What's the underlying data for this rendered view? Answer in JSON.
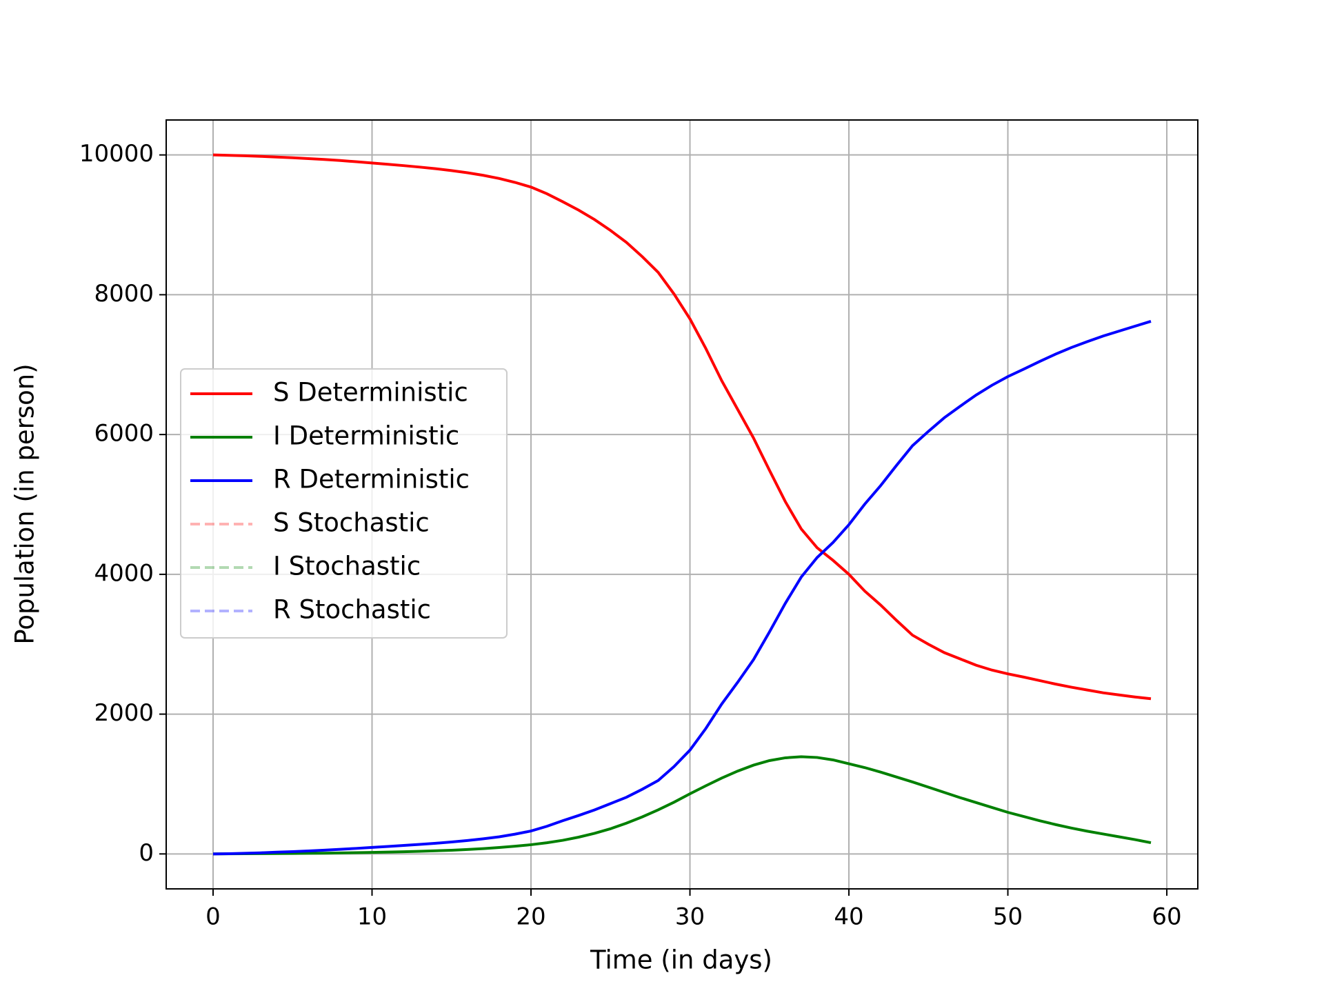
{
  "chart_data": {
    "type": "line",
    "xlabel": "Time (in days)",
    "ylabel": "Population (in person)",
    "x": [
      0,
      1,
      2,
      3,
      4,
      5,
      6,
      7,
      8,
      9,
      10,
      11,
      12,
      13,
      14,
      15,
      16,
      17,
      18,
      19,
      20,
      21,
      22,
      23,
      24,
      25,
      26,
      27,
      28,
      29,
      30,
      31,
      32,
      33,
      34,
      35,
      36,
      37,
      38,
      39,
      40,
      41,
      42,
      43,
      44,
      45,
      46,
      47,
      48,
      49,
      50,
      51,
      52,
      53,
      54,
      55,
      56,
      57,
      58,
      59
    ],
    "series": [
      {
        "name": "S Deterministic",
        "color": "#ff0000",
        "dash": "solid",
        "opacity": 1,
        "values": [
          10000,
          9995,
          9988,
          9980,
          9970,
          9960,
          9948,
          9935,
          9920,
          9903,
          9885,
          9866,
          9847,
          9826,
          9803,
          9776,
          9745,
          9708,
          9663,
          9607,
          9540,
          9445,
          9330,
          9210,
          9075,
          8920,
          8750,
          8545,
          8320,
          8010,
          7655,
          7230,
          6770,
          6360,
          5950,
          5490,
          5040,
          4650,
          4380,
          4200,
          4000,
          3760,
          3560,
          3340,
          3130,
          3000,
          2880,
          2790,
          2700,
          2630,
          2576,
          2530,
          2480,
          2430,
          2385,
          2345,
          2305,
          2275,
          2245,
          2220
        ]
      },
      {
        "name": "I Deterministic",
        "color": "#008000",
        "dash": "solid",
        "opacity": 1,
        "values": [
          1,
          2,
          3,
          4,
          5,
          7,
          9,
          11,
          14,
          18,
          22,
          27,
          32,
          38,
          45,
          53,
          63,
          76,
          92,
          110,
          132,
          160,
          195,
          240,
          295,
          360,
          440,
          530,
          630,
          740,
          860,
          975,
          1085,
          1185,
          1270,
          1335,
          1375,
          1390,
          1380,
          1345,
          1290,
          1235,
          1170,
          1100,
          1030,
          955,
          880,
          805,
          735,
          665,
          595,
          535,
          475,
          420,
          370,
          325,
          285,
          245,
          205,
          160
        ]
      },
      {
        "name": "R Deterministic",
        "color": "#0000ff",
        "dash": "solid",
        "opacity": 1,
        "values": [
          0,
          3,
          9,
          16,
          25,
          33,
          43,
          54,
          66,
          79,
          93,
          107,
          121,
          136,
          152,
          171,
          192,
          216,
          245,
          283,
          328,
          395,
          475,
          550,
          630,
          720,
          810,
          925,
          1050,
          1250,
          1485,
          1795,
          2145,
          2455,
          2780,
          3175,
          3585,
          3960,
          4240,
          4455,
          4710,
          5005,
          5270,
          5560,
          5840,
          6045,
          6240,
          6405,
          6565,
          6705,
          6829,
          6935,
          7045,
          7150,
          7245,
          7330,
          7410,
          7480,
          7550,
          7620
        ]
      },
      {
        "name": "S Stochastic",
        "color": "#ff0000",
        "dash": "dashed",
        "opacity": 0.3,
        "values": [
          null,
          null,
          null,
          null,
          null,
          null,
          null,
          null,
          null,
          null,
          null,
          null,
          null,
          null,
          null,
          null,
          null,
          null,
          null,
          null,
          null,
          null,
          null,
          null,
          null,
          null,
          null,
          null,
          null,
          null,
          null,
          null,
          null,
          null,
          null,
          null,
          null,
          null,
          null,
          null,
          null,
          null,
          null,
          null,
          null,
          null,
          null,
          null,
          null,
          null,
          null,
          null,
          null,
          null,
          null,
          null,
          null,
          null,
          null,
          null
        ]
      },
      {
        "name": "I Stochastic",
        "color": "#008000",
        "dash": "dashed",
        "opacity": 0.3,
        "values": [
          null,
          null,
          null,
          null,
          null,
          null,
          null,
          null,
          null,
          null,
          null,
          null,
          null,
          null,
          null,
          null,
          null,
          null,
          null,
          null,
          null,
          null,
          null,
          null,
          null,
          null,
          null,
          null,
          null,
          null,
          null,
          null,
          null,
          null,
          null,
          null,
          null,
          null,
          null,
          null,
          null,
          null,
          null,
          null,
          null,
          null,
          null,
          null,
          null,
          null,
          null,
          null,
          null,
          null,
          null,
          null,
          null,
          null,
          null,
          null
        ]
      },
      {
        "name": "R Stochastic",
        "color": "#0000ff",
        "dash": "dashed",
        "opacity": 0.3,
        "values": [
          null,
          null,
          null,
          null,
          null,
          null,
          null,
          null,
          null,
          null,
          null,
          null,
          null,
          null,
          null,
          null,
          null,
          null,
          null,
          null,
          null,
          null,
          null,
          null,
          null,
          null,
          null,
          null,
          null,
          null,
          null,
          null,
          null,
          null,
          null,
          null,
          null,
          null,
          null,
          null,
          null,
          null,
          null,
          null,
          null,
          null,
          null,
          null,
          null,
          null,
          null,
          null,
          null,
          null,
          null,
          null,
          null,
          null,
          null,
          null
        ]
      }
    ],
    "xlim": [
      -2.95,
      61.95
    ],
    "xticks": [
      0,
      10,
      20,
      30,
      40,
      50,
      60
    ],
    "ylim": [
      -500,
      10500
    ],
    "yticks": [
      0,
      2000,
      4000,
      6000,
      8000,
      10000
    ],
    "grid": true,
    "legend": "center left"
  }
}
